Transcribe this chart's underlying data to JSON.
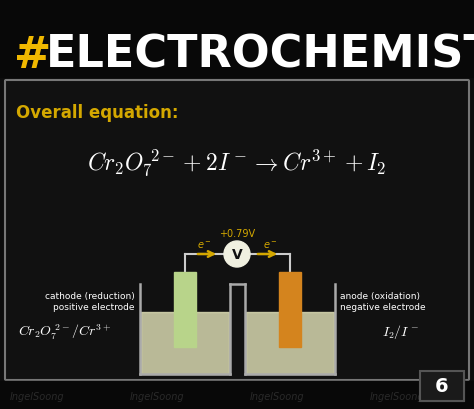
{
  "bg_color": "#0d0d0d",
  "watermark_color": "#2a2a2a",
  "title_color": "#ffffff",
  "title_hash_color": "#f0b800",
  "box_bg": "#111111",
  "box_border": "#777777",
  "overall_label": "Overall equation:",
  "overall_label_color": "#d4a800",
  "equation_color": "#ffffff",
  "voltage": "+0.79V",
  "voltage_color": "#d4a800",
  "voltmeter_fill": "#f0f0e0",
  "voltmeter_text": "V",
  "voltmeter_text_color": "#111111",
  "electron_color": "#d4a800",
  "cathode_color": "#b8d48a",
  "anode_color": "#d4841e",
  "solution_color": "#d8d8b0",
  "cathode_label1": "cathode (reduction)",
  "cathode_label2": "positive electrode",
  "anode_label1": "anode (oxidation)",
  "anode_label2": "negative electrode",
  "label_color": "#ffffff",
  "wire_color": "#cccccc",
  "cell_color": "#aaaaaa",
  "watermark_text": "IngelSoong",
  "number_badge": "6",
  "badge_bg": "#1a1a1a",
  "badge_border": "#555555"
}
